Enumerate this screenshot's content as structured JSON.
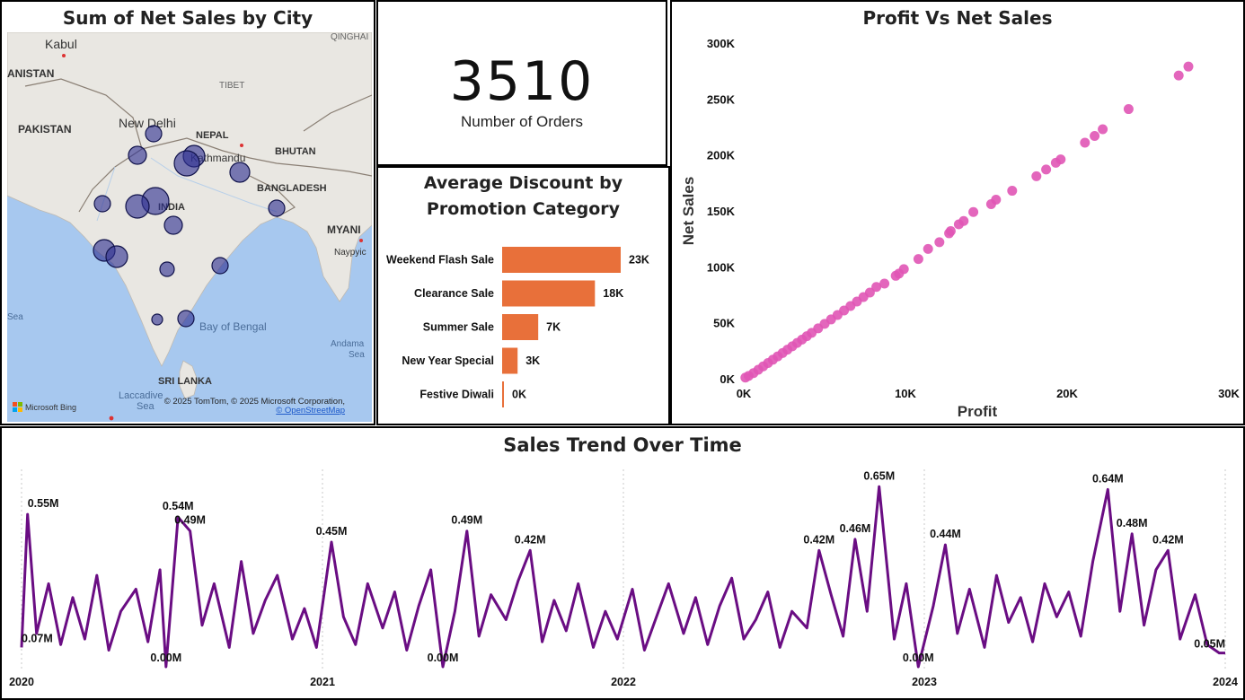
{
  "map_panel": {
    "title": "Sum of Net Sales by City",
    "labels": {
      "kabul": "Kabul",
      "qinghai": "QINGHAI",
      "afghanistan": "ANISTAN",
      "tibet": "TIBET",
      "pakistan": "PAKISTAN",
      "new_delhi": "New Delhi",
      "nepal": "NEPAL",
      "kathmandu": "Kathmandu",
      "bhutan": "BHUTAN",
      "bangladesh": "BANGLADESH",
      "india": "INDIA",
      "myanmar": "MYANI",
      "naypyidaw": "Naypyic",
      "arabian_sea": "Sea",
      "bay_of_bengal": "Bay of Bengal",
      "andaman": "Andama",
      "andaman2": "Sea",
      "sri_lanka": "SRI LANKA",
      "laccadive": "Laccadive",
      "laccadive2": "Sea"
    },
    "attribution": "© 2025 TomTom, © 2025 Microsoft Corporation,",
    "attribution_link": "© OpenStreetMap",
    "bing_logo": "Microsoft Bing",
    "colors": {
      "land": "#e9e7e2",
      "water": "#a7c8ef",
      "bubble": "#2e3192"
    }
  },
  "kpi": {
    "value": "3510",
    "label": "Number of Orders"
  },
  "discount_chart": {
    "title_line1": "Average Discount by",
    "title_line2": "Promotion Category",
    "color": "#e8703a"
  },
  "scatter_panel": {
    "title": "Profit Vs Net Sales",
    "color": "#e055b5"
  },
  "trend_panel": {
    "title": "Sales Trend Over Time",
    "color": "#6a0d83"
  },
  "chart_data": [
    {
      "type": "bar",
      "orientation": "horizontal",
      "categories": [
        "Weekend Flash Sale",
        "Clearance Sale",
        "Summer Sale",
        "New Year Special",
        "Festive Diwali"
      ],
      "values": [
        23000,
        18000,
        7000,
        3000,
        0
      ],
      "data_labels": [
        "23K",
        "18K",
        "7K",
        "3K",
        "0K"
      ],
      "title": "Average Discount by Promotion Category"
    },
    {
      "type": "scatter",
      "title": "Profit Vs Net Sales",
      "xlabel": "Profit",
      "ylabel": "Net Sales",
      "xlim": [
        0,
        30000
      ],
      "ylim": [
        0,
        300000
      ],
      "x_ticks": [
        "0K",
        "10K",
        "20K",
        "30K"
      ],
      "y_ticks": [
        "0K",
        "50K",
        "100K",
        "150K",
        "200K",
        "250K",
        "300K"
      ],
      "x": [
        27500,
        26900,
        23800,
        22200,
        21700,
        21100,
        19600,
        19300,
        18700,
        18100,
        16600,
        15600,
        15300,
        14200,
        13600,
        13300,
        12800,
        12700,
        12100,
        11400,
        10800,
        9900,
        9600,
        9400,
        8700,
        8200,
        7800,
        7400,
        7000,
        6600,
        6200,
        5800,
        5400,
        5000,
        4600,
        4200,
        3900,
        3600,
        3300,
        3000,
        2700,
        2400,
        2100,
        1800,
        1500,
        1200,
        900,
        600,
        300,
        100
      ],
      "y": [
        279000,
        271000,
        241000,
        223000,
        217000,
        211000,
        196000,
        193000,
        187000,
        181000,
        168000,
        160000,
        156000,
        149000,
        141000,
        138000,
        132000,
        130000,
        122000,
        116000,
        107000,
        98000,
        94000,
        92000,
        85000,
        82000,
        77000,
        73000,
        69000,
        65000,
        61000,
        57000,
        53000,
        49000,
        45000,
        41000,
        38000,
        35000,
        32000,
        29000,
        26000,
        23000,
        20000,
        17000,
        14000,
        11000,
        8000,
        5000,
        2500,
        1000
      ]
    },
    {
      "type": "line",
      "title": "Sales Trend Over Time",
      "x_ticks": [
        "2020",
        "2021",
        "2022",
        "2023",
        "2024"
      ],
      "xlim": [
        2020.0,
        2024.0
      ],
      "ylim": [
        0,
        0.68
      ],
      "x": [
        2020.0,
        2020.02,
        2020.05,
        2020.09,
        2020.13,
        2020.17,
        2020.21,
        2020.25,
        2020.29,
        2020.33,
        2020.38,
        2020.42,
        2020.46,
        2020.48,
        2020.52,
        2020.56,
        2020.6,
        2020.64,
        2020.69,
        2020.73,
        2020.77,
        2020.81,
        2020.85,
        2020.9,
        2020.94,
        2020.98,
        2021.03,
        2021.07,
        2021.11,
        2021.15,
        2021.2,
        2021.24,
        2021.28,
        2021.32,
        2021.36,
        2021.4,
        2021.44,
        2021.48,
        2021.52,
        2021.56,
        2021.61,
        2021.65,
        2021.69,
        2021.73,
        2021.77,
        2021.81,
        2021.85,
        2021.9,
        2021.94,
        2021.98,
        2022.03,
        2022.07,
        2022.11,
        2022.15,
        2022.2,
        2022.24,
        2022.28,
        2022.32,
        2022.36,
        2022.4,
        2022.44,
        2022.48,
        2022.52,
        2022.56,
        2022.61,
        2022.65,
        2022.69,
        2022.73,
        2022.77,
        2022.81,
        2022.85,
        2022.9,
        2022.94,
        2022.98,
        2023.03,
        2023.07,
        2023.11,
        2023.15,
        2023.2,
        2023.24,
        2023.28,
        2023.32,
        2023.36,
        2023.4,
        2023.44,
        2023.48,
        2023.52,
        2023.56,
        2023.61,
        2023.65,
        2023.69,
        2023.73,
        2023.77,
        2023.81,
        2023.85,
        2023.9,
        2023.94,
        2023.98,
        2024.0
      ],
      "values": [
        0.07,
        0.55,
        0.12,
        0.3,
        0.08,
        0.25,
        0.1,
        0.33,
        0.06,
        0.2,
        0.28,
        0.09,
        0.35,
        0.0,
        0.54,
        0.49,
        0.15,
        0.3,
        0.07,
        0.38,
        0.12,
        0.24,
        0.33,
        0.1,
        0.21,
        0.07,
        0.45,
        0.18,
        0.08,
        0.3,
        0.14,
        0.27,
        0.06,
        0.22,
        0.35,
        0.0,
        0.2,
        0.49,
        0.11,
        0.26,
        0.17,
        0.31,
        0.42,
        0.09,
        0.24,
        0.13,
        0.3,
        0.07,
        0.2,
        0.1,
        0.28,
        0.06,
        0.18,
        0.3,
        0.12,
        0.25,
        0.08,
        0.22,
        0.32,
        0.1,
        0.17,
        0.27,
        0.07,
        0.2,
        0.14,
        0.42,
        0.26,
        0.11,
        0.46,
        0.2,
        0.65,
        0.1,
        0.3,
        0.0,
        0.22,
        0.44,
        0.12,
        0.28,
        0.07,
        0.33,
        0.16,
        0.25,
        0.09,
        0.3,
        0.18,
        0.27,
        0.11,
        0.38,
        0.64,
        0.2,
        0.48,
        0.15,
        0.35,
        0.42,
        0.1,
        0.26,
        0.08,
        0.05,
        0.05
      ],
      "data_labels": [
        {
          "x": 2020.02,
          "text": "0.55M"
        },
        {
          "x": 2020.52,
          "text": "0.54M"
        },
        {
          "x": 2020.56,
          "text": "0.49M"
        },
        {
          "x": 2021.03,
          "text": "0.45M"
        },
        {
          "x": 2021.48,
          "text": "0.49M"
        },
        {
          "x": 2021.69,
          "text": "0.42M"
        },
        {
          "x": 2022.65,
          "text": "0.42M"
        },
        {
          "x": 2022.77,
          "text": "0.46M"
        },
        {
          "x": 2022.85,
          "text": "0.65M"
        },
        {
          "x": 2023.07,
          "text": "0.44M"
        },
        {
          "x": 2023.61,
          "text": "0.64M"
        },
        {
          "x": 2023.69,
          "text": "0.48M"
        },
        {
          "x": 2023.81,
          "text": "0.42M"
        },
        {
          "x": 2020.0,
          "text": "0.07M"
        },
        {
          "x": 2020.48,
          "text": "0.00M"
        },
        {
          "x": 2021.4,
          "text": "0.00M"
        },
        {
          "x": 2022.98,
          "text": "0.00M"
        },
        {
          "x": 2024.0,
          "text": "0.05M"
        }
      ]
    }
  ]
}
